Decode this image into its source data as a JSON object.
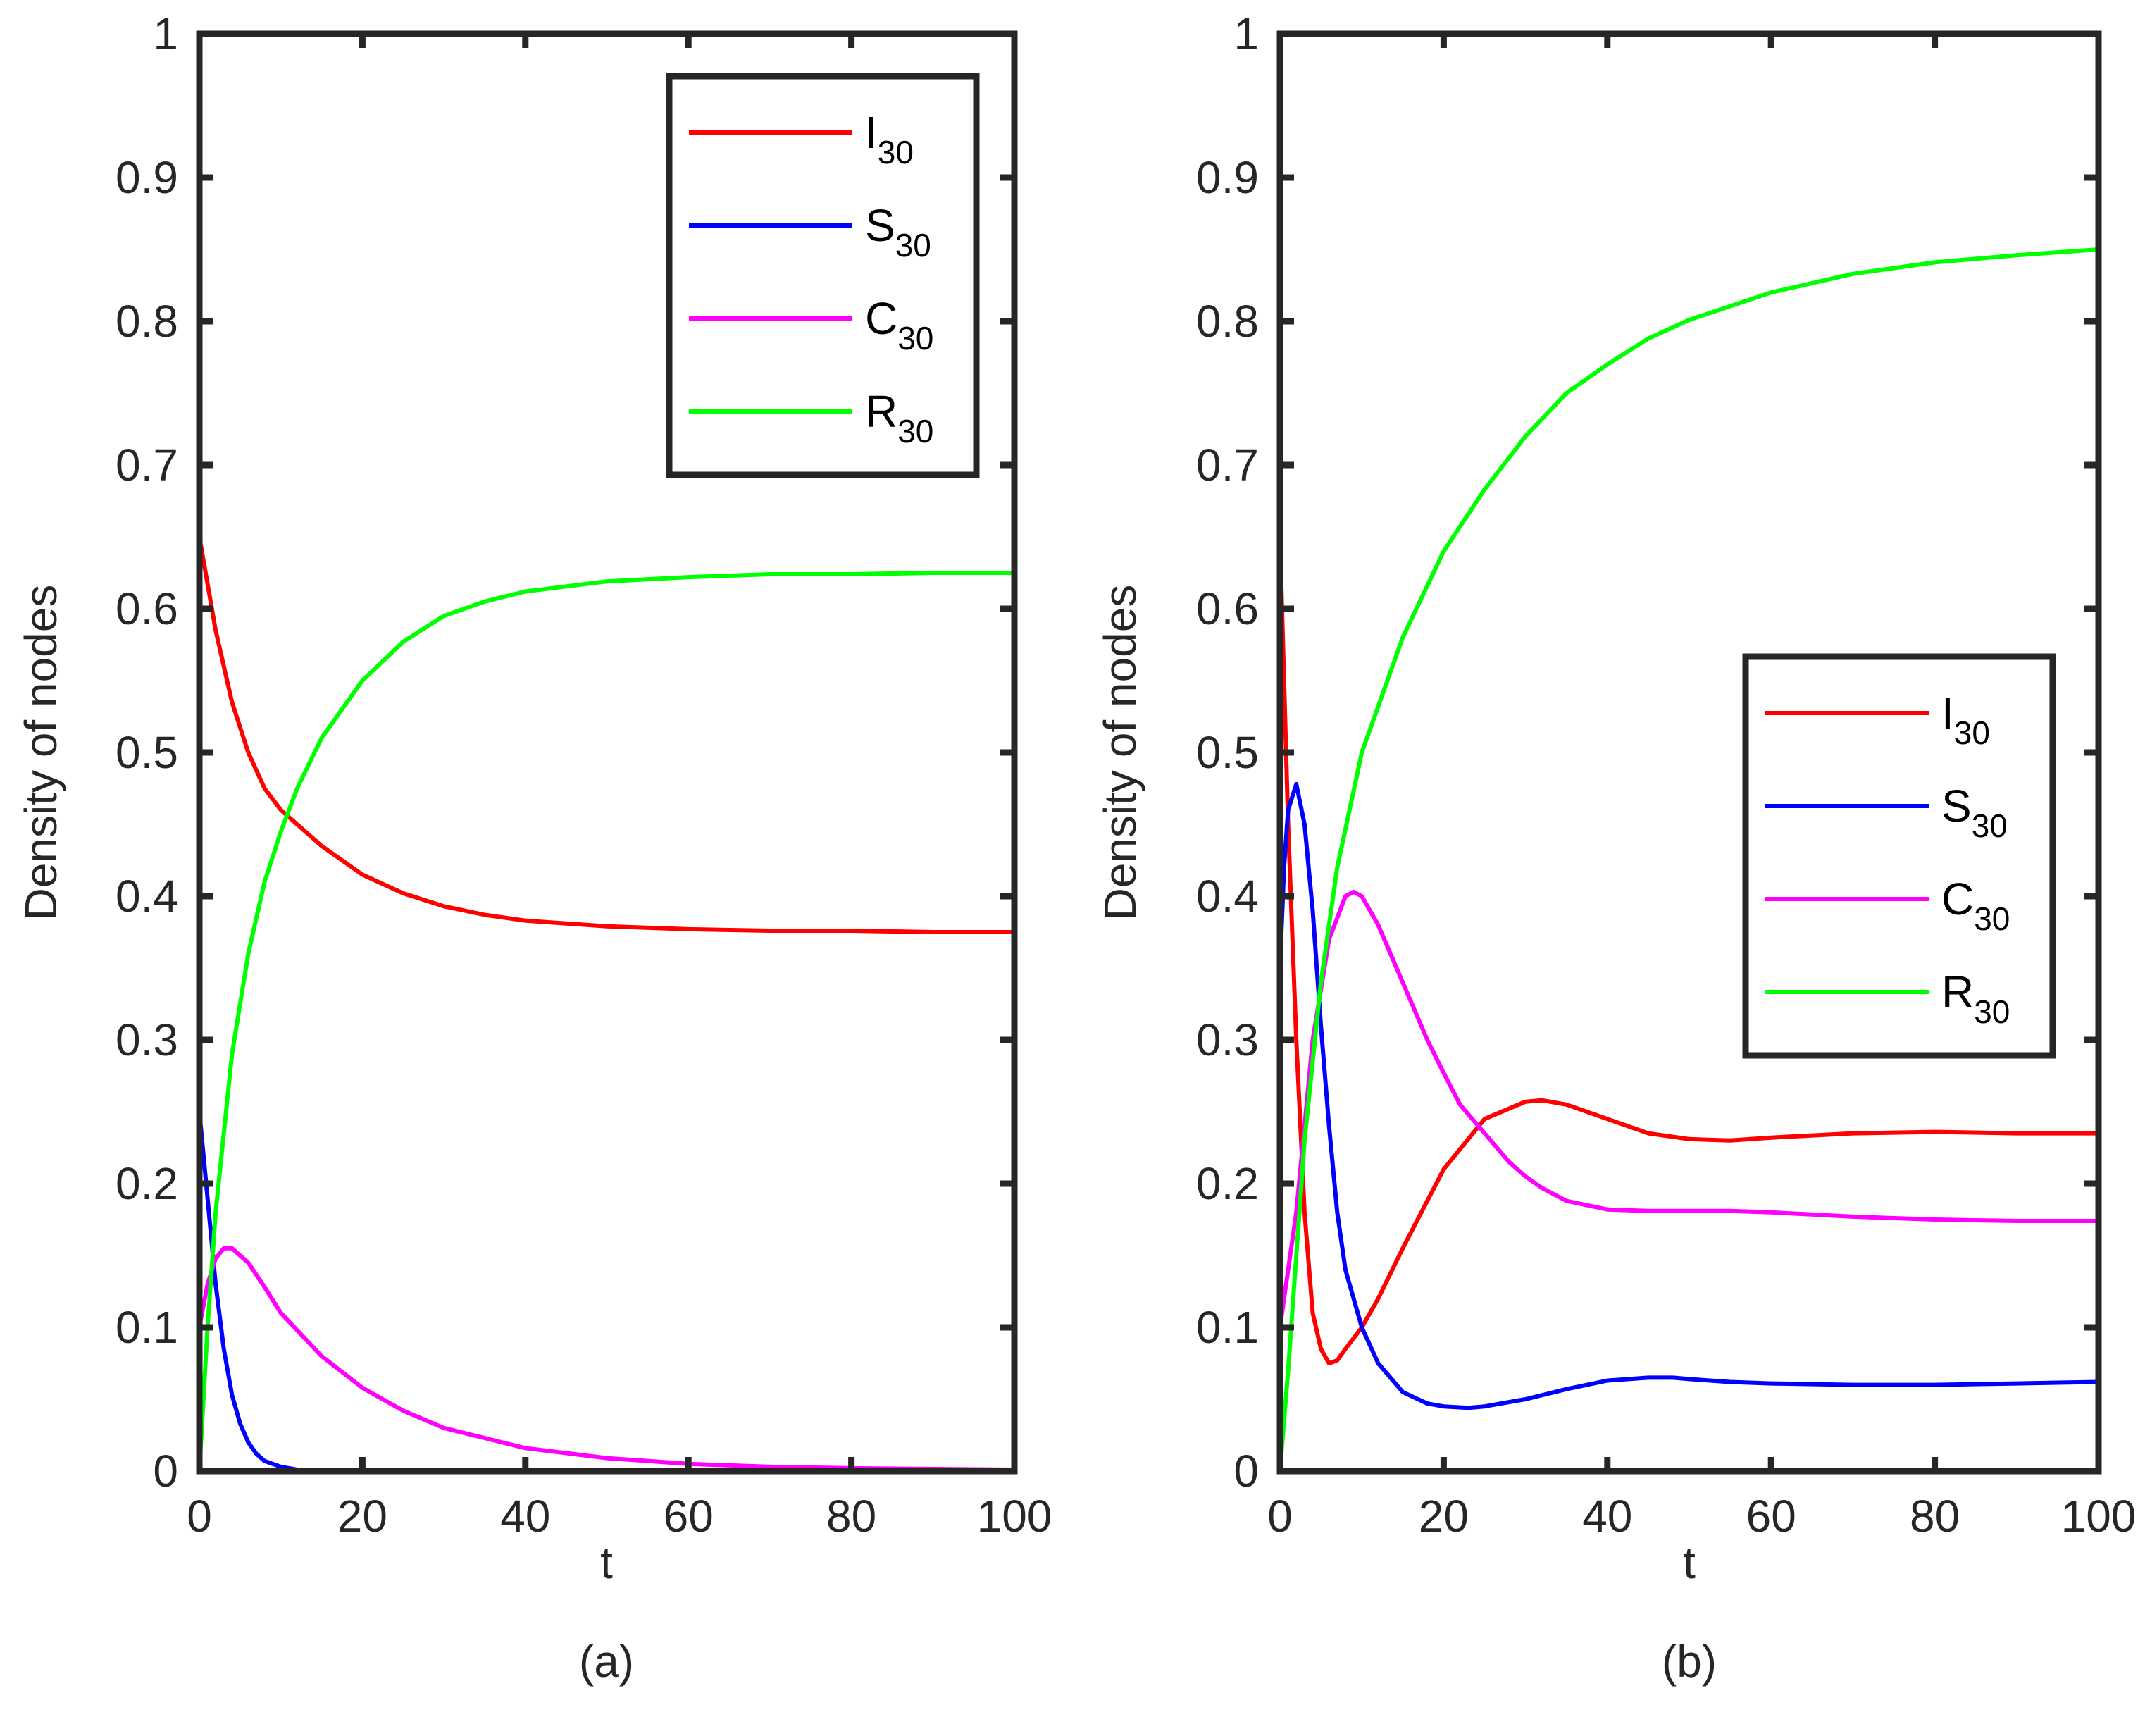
{
  "colors": {
    "I": "#ff0000",
    "S": "#0000ff",
    "C": "#ff00ff",
    "R": "#00ff00",
    "axis": "#262626"
  },
  "chart_data": [
    {
      "id": "a",
      "type": "line",
      "caption": "(a)",
      "xlabel": "t",
      "ylabel": "Density of nodes",
      "xlim": [
        0,
        100
      ],
      "ylim": [
        0,
        1
      ],
      "xticks": [
        0,
        20,
        40,
        60,
        80,
        100
      ],
      "xtick_labels": [
        "0",
        "20",
        "40",
        "60",
        "80",
        "100"
      ],
      "yticks": [
        0,
        0.1,
        0.2,
        0.3,
        0.4,
        0.5,
        0.6,
        0.7,
        0.8,
        0.9,
        1
      ],
      "ytick_labels": [
        "0",
        "0.1",
        "0.2",
        "0.3",
        "0.4",
        "0.5",
        "0.6",
        "0.7",
        "0.8",
        "0.9",
        "1"
      ],
      "legend_position": "top-right",
      "series": [
        {
          "key": "I",
          "name": "I",
          "sub": "30",
          "x": [
            0,
            2,
            4,
            6,
            8,
            10,
            12,
            15,
            20,
            25,
            30,
            35,
            40,
            50,
            60,
            70,
            80,
            90,
            100
          ],
          "y": [
            0.65,
            0.585,
            0.535,
            0.5,
            0.475,
            0.46,
            0.45,
            0.435,
            0.415,
            0.402,
            0.393,
            0.387,
            0.383,
            0.379,
            0.377,
            0.376,
            0.376,
            0.375,
            0.375
          ]
        },
        {
          "key": "S",
          "name": "S",
          "sub": "30",
          "x": [
            0,
            1,
            2,
            3,
            4,
            5,
            6,
            7,
            8,
            10,
            12,
            15,
            20,
            40,
            60,
            80,
            100
          ],
          "y": [
            0.25,
            0.19,
            0.13,
            0.085,
            0.053,
            0.033,
            0.02,
            0.012,
            0.007,
            0.003,
            0.001,
            0.0,
            0.0,
            0.0,
            0.0,
            0.0,
            0.0
          ]
        },
        {
          "key": "C",
          "name": "C",
          "sub": "30",
          "x": [
            0,
            1,
            2,
            3,
            4,
            6,
            8,
            10,
            15,
            20,
            25,
            30,
            40,
            50,
            60,
            70,
            80,
            100
          ],
          "y": [
            0.1,
            0.13,
            0.148,
            0.155,
            0.155,
            0.145,
            0.128,
            0.11,
            0.08,
            0.058,
            0.042,
            0.03,
            0.016,
            0.009,
            0.005,
            0.003,
            0.002,
            0.001
          ]
        },
        {
          "key": "R",
          "name": "R",
          "sub": "30",
          "x": [
            0,
            1,
            2,
            4,
            6,
            8,
            10,
            12,
            15,
            20,
            25,
            30,
            35,
            40,
            50,
            60,
            70,
            80,
            90,
            100
          ],
          "y": [
            0.0,
            0.1,
            0.18,
            0.29,
            0.36,
            0.41,
            0.445,
            0.475,
            0.51,
            0.55,
            0.577,
            0.595,
            0.605,
            0.612,
            0.619,
            0.622,
            0.624,
            0.624,
            0.625,
            0.625
          ]
        }
      ]
    },
    {
      "id": "b",
      "type": "line",
      "caption": "(b)",
      "xlabel": "t",
      "ylabel": "Density of nodes",
      "xlim": [
        0,
        100
      ],
      "ylim": [
        0,
        1
      ],
      "xticks": [
        0,
        20,
        40,
        60,
        80,
        100
      ],
      "xtick_labels": [
        "0",
        "20",
        "40",
        "60",
        "80",
        "100"
      ],
      "yticks": [
        0,
        0.1,
        0.2,
        0.3,
        0.4,
        0.5,
        0.6,
        0.7,
        0.8,
        0.9,
        1
      ],
      "ytick_labels": [
        "0",
        "0.1",
        "0.2",
        "0.3",
        "0.4",
        "0.5",
        "0.6",
        "0.7",
        "0.8",
        "0.9",
        "1"
      ],
      "legend_position": "center-right",
      "series": [
        {
          "key": "I",
          "name": "I",
          "sub": "30",
          "x": [
            0,
            0.5,
            1,
            2,
            3,
            4,
            5,
            6,
            7,
            8,
            10,
            12,
            15,
            20,
            25,
            30,
            32,
            35,
            40,
            45,
            50,
            55,
            60,
            70,
            80,
            90,
            100
          ],
          "y": [
            0.65,
            0.55,
            0.45,
            0.3,
            0.18,
            0.11,
            0.085,
            0.075,
            0.077,
            0.085,
            0.1,
            0.12,
            0.155,
            0.21,
            0.245,
            0.257,
            0.258,
            0.255,
            0.245,
            0.235,
            0.231,
            0.23,
            0.232,
            0.235,
            0.236,
            0.235,
            0.235
          ]
        },
        {
          "key": "S",
          "name": "S",
          "sub": "30",
          "x": [
            0,
            0.5,
            1,
            2,
            3,
            4,
            5,
            6,
            7,
            8,
            10,
            12,
            15,
            18,
            20,
            23,
            25,
            30,
            35,
            40,
            45,
            48,
            50,
            55,
            60,
            70,
            80,
            90,
            100
          ],
          "y": [
            0.35,
            0.42,
            0.46,
            0.478,
            0.45,
            0.39,
            0.31,
            0.24,
            0.18,
            0.14,
            0.1,
            0.075,
            0.055,
            0.047,
            0.045,
            0.044,
            0.045,
            0.05,
            0.057,
            0.063,
            0.065,
            0.065,
            0.064,
            0.062,
            0.061,
            0.06,
            0.06,
            0.061,
            0.062
          ]
        },
        {
          "key": "C",
          "name": "C",
          "sub": "30",
          "x": [
            0,
            2,
            4,
            6,
            8,
            9,
            10,
            12,
            15,
            18,
            20,
            22,
            25,
            28,
            30,
            32,
            35,
            40,
            45,
            50,
            55,
            60,
            70,
            80,
            90,
            100
          ],
          "y": [
            0.1,
            0.18,
            0.3,
            0.37,
            0.4,
            0.403,
            0.4,
            0.38,
            0.34,
            0.3,
            0.277,
            0.255,
            0.235,
            0.215,
            0.205,
            0.197,
            0.188,
            0.182,
            0.181,
            0.181,
            0.181,
            0.18,
            0.177,
            0.175,
            0.174,
            0.174
          ]
        },
        {
          "key": "R",
          "name": "R",
          "sub": "30",
          "x": [
            0,
            1,
            2,
            3,
            5,
            7,
            10,
            15,
            20,
            25,
            30,
            35,
            40,
            45,
            50,
            60,
            70,
            80,
            90,
            100
          ],
          "y": [
            0.0,
            0.07,
            0.15,
            0.23,
            0.34,
            0.42,
            0.5,
            0.58,
            0.64,
            0.683,
            0.72,
            0.75,
            0.77,
            0.788,
            0.801,
            0.82,
            0.833,
            0.841,
            0.846,
            0.85
          ]
        }
      ]
    }
  ]
}
